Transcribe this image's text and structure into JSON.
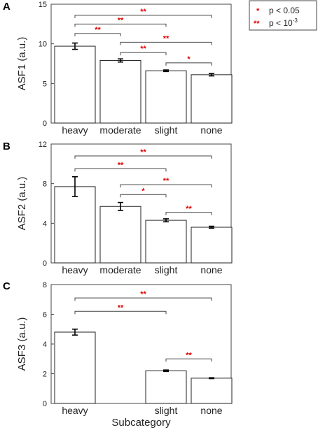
{
  "colors": {
    "significance": "#e00000",
    "axis": "#444444",
    "bar_fill": "#ffffff",
    "bar_stroke": "#222222"
  },
  "legend": {
    "placement": "top-right",
    "items": [
      {
        "marker": "*",
        "text": "p < 0.05"
      },
      {
        "marker": "**",
        "text": "p < 10",
        "superscript": "-3"
      }
    ]
  },
  "chart_data": [
    {
      "type": "bar",
      "panel_label": "A",
      "ylabel": "ASF1 (a.u.)",
      "xlabel": "",
      "ylim": [
        0,
        15
      ],
      "yticks": [
        0,
        5,
        10,
        15
      ],
      "grid": false,
      "categories": [
        "heavy",
        "moderate",
        "slight",
        "none"
      ],
      "values": [
        9.7,
        7.9,
        6.6,
        6.1
      ],
      "errors": [
        0.4,
        0.2,
        0.1,
        0.15
      ],
      "significance": [
        {
          "from": 0,
          "to": 1,
          "y": 11.3,
          "label": "**"
        },
        {
          "from": 0,
          "to": 2,
          "y": 12.5,
          "label": "**"
        },
        {
          "from": 0,
          "to": 3,
          "y": 13.6,
          "label": "**"
        },
        {
          "from": 1,
          "to": 3,
          "y": 10.2,
          "label": "**"
        },
        {
          "from": 1,
          "to": 2,
          "y": 8.9,
          "label": "**"
        },
        {
          "from": 2,
          "to": 3,
          "y": 7.6,
          "label": "*"
        }
      ]
    },
    {
      "type": "bar",
      "panel_label": "B",
      "ylabel": "ASF2 (a.u.)",
      "xlabel": "",
      "ylim": [
        0,
        12
      ],
      "yticks": [
        0,
        4,
        8,
        12
      ],
      "grid": false,
      "categories": [
        "heavy",
        "moderate",
        "slight",
        "none"
      ],
      "values": [
        7.7,
        5.7,
        4.3,
        3.6
      ],
      "errors": [
        1.0,
        0.4,
        0.15,
        0.1
      ],
      "significance": [
        {
          "from": 0,
          "to": 2,
          "y": 9.5,
          "label": "**"
        },
        {
          "from": 0,
          "to": 3,
          "y": 10.8,
          "label": "**"
        },
        {
          "from": 1,
          "to": 3,
          "y": 7.9,
          "label": "**"
        },
        {
          "from": 1,
          "to": 2,
          "y": 6.9,
          "label": "*"
        },
        {
          "from": 2,
          "to": 3,
          "y": 5.1,
          "label": "**"
        }
      ]
    },
    {
      "type": "bar",
      "panel_label": "C",
      "ylabel": "ASF3 (a.u.)",
      "xlabel": "Subcategory",
      "ylim": [
        0,
        8
      ],
      "yticks": [
        0,
        2,
        4,
        6,
        8
      ],
      "grid": false,
      "categories": [
        "heavy",
        "",
        "slight",
        "none"
      ],
      "values": [
        4.8,
        null,
        2.2,
        1.7
      ],
      "errors": [
        0.2,
        null,
        0.05,
        0.03
      ],
      "significance": [
        {
          "from": 0,
          "to": 2,
          "y": 6.2,
          "label": "**"
        },
        {
          "from": 0,
          "to": 3,
          "y": 7.1,
          "label": "**"
        },
        {
          "from": 2,
          "to": 3,
          "y": 3.0,
          "label": "**"
        }
      ]
    }
  ]
}
